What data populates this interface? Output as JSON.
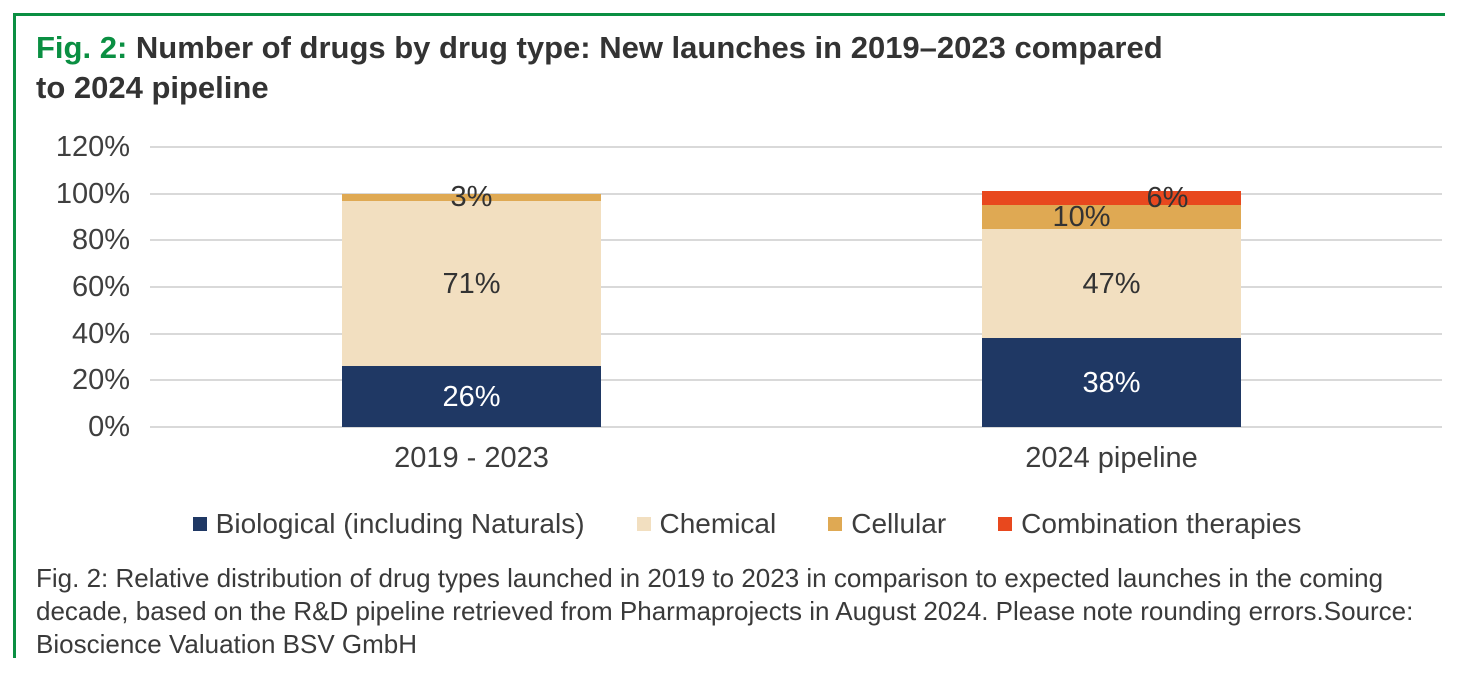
{
  "figure": {
    "title_prefix": "Fig. 2:",
    "title_rest": "Number of drugs by drug type: New launches in 2019–2023 compared to 2024 pipeline",
    "caption": "Fig. 2: Relative distribution of drug types launched in 2019 to 2023 in comparison to expected launches in the coming decade, based on the R&D pipeline retrieved from Pharmaprojects in August 2024. Please note rounding errors.Source: Bioscience Valuation BSV GmbH",
    "accent_green": "#0a8f42"
  },
  "chart_data": {
    "type": "bar",
    "stacked": true,
    "title": "Number of drugs by drug type: New launches in 2019–2023 compared to 2024 pipeline",
    "categories": [
      "2019 - 2023",
      "2024 pipeline"
    ],
    "series": [
      {
        "name": "Biological (including Naturals)",
        "color": "#1F3864",
        "label_color": "#ffffff",
        "values": [
          26,
          38
        ],
        "labels": [
          "26%",
          "38%"
        ],
        "label_dx": [
          0,
          0
        ]
      },
      {
        "name": "Chemical",
        "color": "#F2DFC0",
        "label_color": "#333333",
        "values": [
          71,
          47
        ],
        "labels": [
          "71%",
          "47%"
        ],
        "label_dx": [
          0,
          0
        ]
      },
      {
        "name": "Cellular",
        "color": "#DFA953",
        "label_color": "#333333",
        "values": [
          3,
          10
        ],
        "labels": [
          "3%",
          "10%"
        ],
        "label_dx": [
          0,
          -30
        ]
      },
      {
        "name": "Combination therapies",
        "color": "#E8481E",
        "label_color": "#333333",
        "values": [
          0,
          6
        ],
        "labels": [
          "",
          "6%"
        ],
        "label_dx": [
          0,
          56
        ]
      }
    ],
    "y_ticks": [
      "120%",
      "100%",
      "80%",
      "60%",
      "40%",
      "20%",
      "0%"
    ],
    "ylim": [
      0,
      120
    ],
    "grid": true,
    "legend_position": "bottom",
    "gridline_color": "#d9d9d9"
  }
}
